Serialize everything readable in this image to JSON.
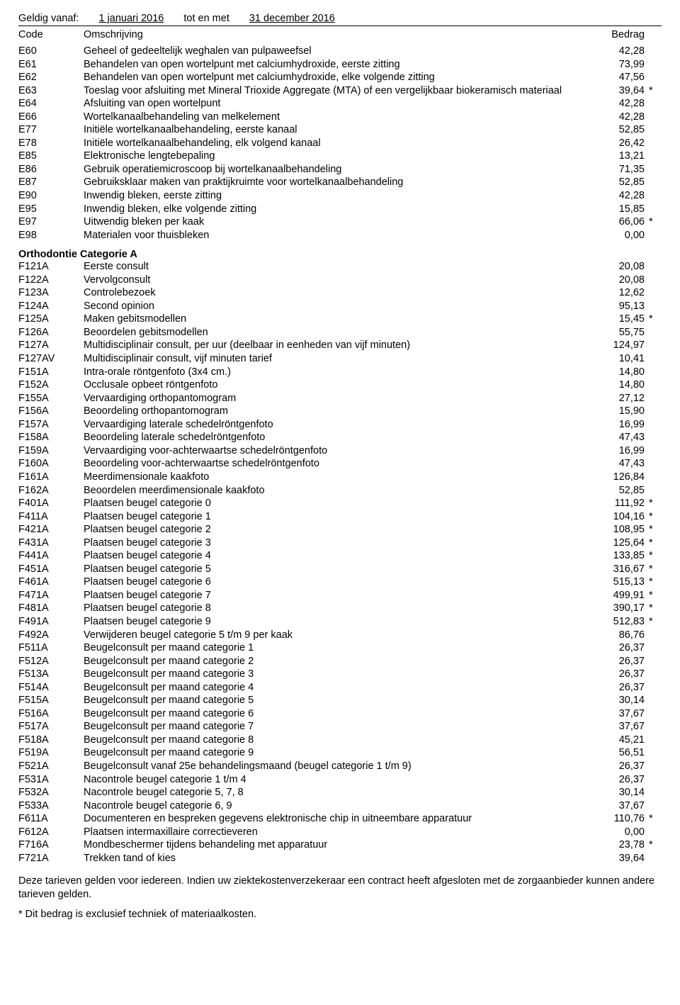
{
  "validity": {
    "label": "Geldig vanaf:",
    "from": "1 januari 2016",
    "tot_label": "tot en met",
    "to": "31 december 2016"
  },
  "headers": {
    "code": "Code",
    "desc": "Omschrijving",
    "amount": "Bedrag"
  },
  "sections": [
    {
      "title": null,
      "rows": [
        {
          "code": "E60",
          "desc": "Geheel of gedeeltelijk weghalen van pulpaweefsel",
          "amount": "42,28",
          "star": false
        },
        {
          "code": "E61",
          "desc": "Behandelen van open wortelpunt met calciumhydroxide, eerste zitting",
          "amount": "73,99",
          "star": false
        },
        {
          "code": "E62",
          "desc": "Behandelen van open wortelpunt met calciumhydroxide, elke volgende zitting",
          "amount": "47,56",
          "star": false
        },
        {
          "code": "E63",
          "desc": "Toeslag voor afsluiting met Mineral Trioxide Aggregate (MTA) of een vergelijkbaar biokeramisch materiaal",
          "amount": "39,64",
          "star": true
        },
        {
          "code": "E64",
          "desc": "Afsluiting van open wortelpunt",
          "amount": "42,28",
          "star": false
        },
        {
          "code": "E66",
          "desc": "Wortelkanaalbehandeling van melkelement",
          "amount": "42,28",
          "star": false
        },
        {
          "code": "E77",
          "desc": "Initiële wortelkanaalbehandeling, eerste kanaal",
          "amount": "52,85",
          "star": false
        },
        {
          "code": "E78",
          "desc": "Initiële wortelkanaalbehandeling, elk volgend kanaal",
          "amount": "26,42",
          "star": false
        },
        {
          "code": "E85",
          "desc": "Elektronische lengtebepaling",
          "amount": "13,21",
          "star": false
        },
        {
          "code": "E86",
          "desc": "Gebruik operatiemicroscoop bij wortelkanaalbehandeling",
          "amount": "71,35",
          "star": false
        },
        {
          "code": "E87",
          "desc": "Gebruiksklaar maken van praktijkruimte voor wortelkanaalbehandeling",
          "amount": "52,85",
          "star": false
        },
        {
          "code": "E90",
          "desc": "Inwendig bleken, eerste zitting",
          "amount": "42,28",
          "star": false
        },
        {
          "code": "E95",
          "desc": "Inwendig bleken, elke volgende zitting",
          "amount": "15,85",
          "star": false
        },
        {
          "code": "E97",
          "desc": "Uitwendig bleken per kaak",
          "amount": "66,06",
          "star": true
        },
        {
          "code": "E98",
          "desc": "Materialen voor thuisbleken",
          "amount": "0,00",
          "star": false
        }
      ]
    },
    {
      "title": "Orthodontie Categorie A",
      "rows": [
        {
          "code": "F121A",
          "desc": "Eerste consult",
          "amount": "20,08",
          "star": false
        },
        {
          "code": "F122A",
          "desc": "Vervolgconsult",
          "amount": "20,08",
          "star": false
        },
        {
          "code": "F123A",
          "desc": "Controlebezoek",
          "amount": "12,62",
          "star": false
        },
        {
          "code": "F124A",
          "desc": "Second opinion",
          "amount": "95,13",
          "star": false
        },
        {
          "code": "F125A",
          "desc": "Maken gebitsmodellen",
          "amount": "15,45",
          "star": true
        },
        {
          "code": "F126A",
          "desc": "Beoordelen gebitsmodellen",
          "amount": "55,75",
          "star": false
        },
        {
          "code": "F127A",
          "desc": "Multidisciplinair consult, per uur (deelbaar in eenheden van vijf minuten)",
          "amount": "124,97",
          "star": false
        },
        {
          "code": "F127AV",
          "desc": "Multidisciplinair consult, vijf minuten tarief",
          "amount": "10,41",
          "star": false
        },
        {
          "code": "F151A",
          "desc": "Intra-orale röntgenfoto (3x4 cm.)",
          "amount": "14,80",
          "star": false
        },
        {
          "code": "F152A",
          "desc": "Occlusale opbeet röntgenfoto",
          "amount": "14,80",
          "star": false
        },
        {
          "code": "F155A",
          "desc": "Vervaardiging orthopantomogram",
          "amount": "27,12",
          "star": false
        },
        {
          "code": "F156A",
          "desc": "Beoordeling orthopantomogram",
          "amount": "15,90",
          "star": false
        },
        {
          "code": "F157A",
          "desc": "Vervaardiging laterale schedelröntgenfoto",
          "amount": "16,99",
          "star": false
        },
        {
          "code": "F158A",
          "desc": "Beoordeling laterale schedelröntgenfoto",
          "amount": "47,43",
          "star": false
        },
        {
          "code": "F159A",
          "desc": "Vervaardiging voor-achterwaartse schedelröntgenfoto",
          "amount": "16,99",
          "star": false
        },
        {
          "code": "F160A",
          "desc": "Beoordeling voor-achterwaartse schedelröntgenfoto",
          "amount": "47,43",
          "star": false
        },
        {
          "code": "F161A",
          "desc": "Meerdimensionale kaakfoto",
          "amount": "126,84",
          "star": false
        },
        {
          "code": "F162A",
          "desc": "Beoordelen meerdimensionale kaakfoto",
          "amount": "52,85",
          "star": false
        },
        {
          "code": "F401A",
          "desc": "Plaatsen beugel categorie 0",
          "amount": "111,92",
          "star": true
        },
        {
          "code": "F411A",
          "desc": "Plaatsen beugel categorie 1",
          "amount": "104,16",
          "star": true
        },
        {
          "code": "F421A",
          "desc": "Plaatsen beugel categorie 2",
          "amount": "108,95",
          "star": true
        },
        {
          "code": "F431A",
          "desc": "Plaatsen beugel categorie 3",
          "amount": "125,64",
          "star": true
        },
        {
          "code": "F441A",
          "desc": "Plaatsen beugel categorie 4",
          "amount": "133,85",
          "star": true
        },
        {
          "code": "F451A",
          "desc": "Plaatsen beugel categorie 5",
          "amount": "316,67",
          "star": true
        },
        {
          "code": "F461A",
          "desc": "Plaatsen beugel categorie 6",
          "amount": "515,13",
          "star": true
        },
        {
          "code": "F471A",
          "desc": "Plaatsen beugel categorie 7",
          "amount": "499,91",
          "star": true
        },
        {
          "code": "F481A",
          "desc": "Plaatsen beugel categorie 8",
          "amount": "390,17",
          "star": true
        },
        {
          "code": "F491A",
          "desc": "Plaatsen beugel categorie 9",
          "amount": "512,83",
          "star": true
        },
        {
          "code": "F492A",
          "desc": "Verwijderen beugel categorie 5 t/m 9 per kaak",
          "amount": "86,76",
          "star": false
        },
        {
          "code": "F511A",
          "desc": "Beugelconsult per maand categorie 1",
          "amount": "26,37",
          "star": false
        },
        {
          "code": "F512A",
          "desc": "Beugelconsult per maand categorie 2",
          "amount": "26,37",
          "star": false
        },
        {
          "code": "F513A",
          "desc": "Beugelconsult per maand categorie 3",
          "amount": "26,37",
          "star": false
        },
        {
          "code": "F514A",
          "desc": "Beugelconsult per maand categorie 4",
          "amount": "26,37",
          "star": false
        },
        {
          "code": "F515A",
          "desc": "Beugelconsult per maand categorie 5",
          "amount": "30,14",
          "star": false
        },
        {
          "code": "F516A",
          "desc": "Beugelconsult per maand categorie 6",
          "amount": "37,67",
          "star": false
        },
        {
          "code": "F517A",
          "desc": "Beugelconsult per maand categorie 7",
          "amount": "37,67",
          "star": false
        },
        {
          "code": "F518A",
          "desc": "Beugelconsult per maand categorie 8",
          "amount": "45,21",
          "star": false
        },
        {
          "code": "F519A",
          "desc": "Beugelconsult per maand categorie 9",
          "amount": "56,51",
          "star": false
        },
        {
          "code": "F521A",
          "desc": "Beugelconsult vanaf 25e behandelingsmaand (beugel categorie 1 t/m 9)",
          "amount": "26,37",
          "star": false
        },
        {
          "code": "F531A",
          "desc": "Nacontrole beugel categorie 1 t/m 4",
          "amount": "26,37",
          "star": false
        },
        {
          "code": "F532A",
          "desc": "Nacontrole beugel categorie 5, 7, 8",
          "amount": "30,14",
          "star": false
        },
        {
          "code": "F533A",
          "desc": "Nacontrole beugel categorie 6, 9",
          "amount": "37,67",
          "star": false
        },
        {
          "code": "F611A",
          "desc": "Documenteren en bespreken gegevens elektronische chip in uitneembare apparatuur",
          "amount": "110,76",
          "star": true
        },
        {
          "code": "F612A",
          "desc": "Plaatsen intermaxillaire correctieveren",
          "amount": "0,00",
          "star": false
        },
        {
          "code": "F716A",
          "desc": "Mondbeschermer tijdens behandeling met apparatuur",
          "amount": "23,78",
          "star": true
        },
        {
          "code": "F721A",
          "desc": "Trekken tand of kies",
          "amount": "39,64",
          "star": false
        }
      ]
    }
  ],
  "footer": {
    "line1": "Deze tarieven gelden voor iedereen. Indien uw ziektekostenverzekeraar een contract heeft afgesloten met de zorgaanbieder kunnen andere tarieven gelden.",
    "line2": "* Dit bedrag is exclusief techniek of materiaalkosten."
  }
}
